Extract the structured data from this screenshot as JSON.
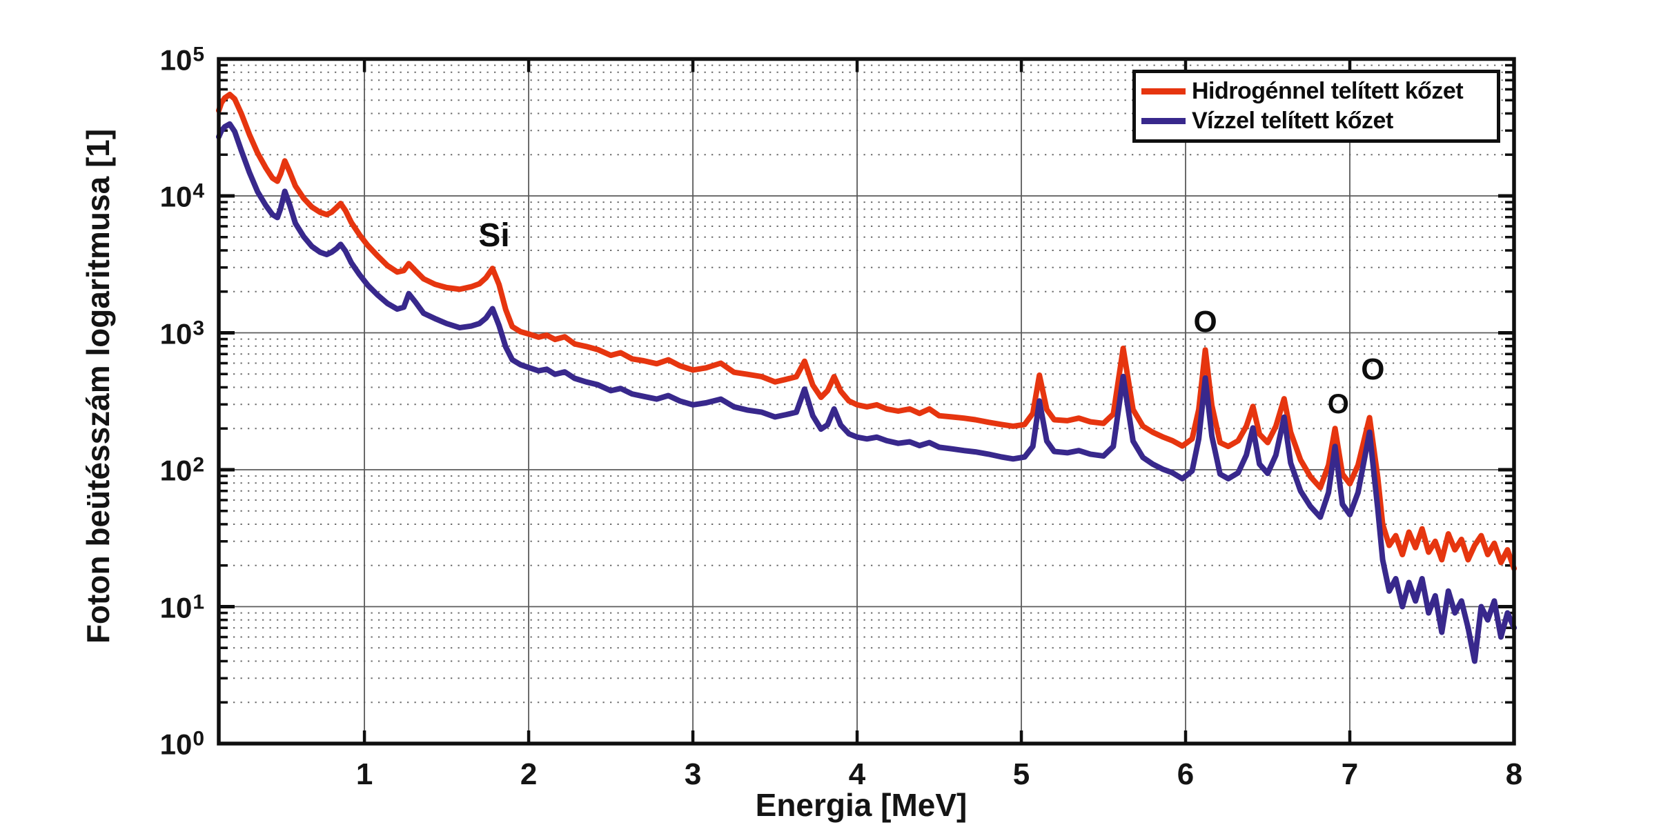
{
  "figure": {
    "background": "#ffffff",
    "axis_color": "#0f0f0f",
    "grid_major_color": "#5a5a5a",
    "grid_minor_color": "#474747"
  },
  "chart_data": {
    "type": "line",
    "title": "",
    "xlabel": "Energia [MeV]",
    "ylabel": "Foton beütésszám logaritmusa [1]",
    "xlim": [
      0.113,
      8
    ],
    "x_ticks": [
      1,
      2,
      3,
      4,
      5,
      6,
      7,
      8
    ],
    "y_scale": "log",
    "y_tick_exponents": [
      0,
      1,
      2,
      3,
      4,
      5
    ],
    "grid": {
      "major": true,
      "minor_dotted": true
    },
    "legend_position": "top-right",
    "annotations": [
      {
        "text": "Si",
        "x": 1.79,
        "y": 5100
      },
      {
        "text": "O",
        "x": 6.12,
        "y": 1200
      },
      {
        "text": "O",
        "x": 6.93,
        "y": 300
      },
      {
        "text": "O",
        "x": 7.14,
        "y": 540
      }
    ],
    "series": [
      {
        "name": "Hidrogénnel telített kőzet",
        "color": "#e6350f",
        "points": [
          [
            0.113,
            42000
          ],
          [
            0.13,
            48000
          ],
          [
            0.15,
            52000
          ],
          [
            0.18,
            55000
          ],
          [
            0.21,
            51000
          ],
          [
            0.25,
            40000
          ],
          [
            0.3,
            28000
          ],
          [
            0.35,
            20500
          ],
          [
            0.4,
            16000
          ],
          [
            0.44,
            13500
          ],
          [
            0.47,
            12800
          ],
          [
            0.49,
            14500
          ],
          [
            0.515,
            18000
          ],
          [
            0.545,
            15000
          ],
          [
            0.58,
            11800
          ],
          [
            0.63,
            9600
          ],
          [
            0.68,
            8300
          ],
          [
            0.73,
            7600
          ],
          [
            0.77,
            7300
          ],
          [
            0.8,
            7600
          ],
          [
            0.83,
            8200
          ],
          [
            0.855,
            8800
          ],
          [
            0.885,
            7800
          ],
          [
            0.92,
            6400
          ],
          [
            0.97,
            5200
          ],
          [
            1.02,
            4350
          ],
          [
            1.08,
            3650
          ],
          [
            1.14,
            3100
          ],
          [
            1.2,
            2780
          ],
          [
            1.24,
            2850
          ],
          [
            1.27,
            3200
          ],
          [
            1.31,
            2850
          ],
          [
            1.36,
            2480
          ],
          [
            1.43,
            2260
          ],
          [
            1.5,
            2140
          ],
          [
            1.58,
            2080
          ],
          [
            1.65,
            2170
          ],
          [
            1.7,
            2280
          ],
          [
            1.74,
            2520
          ],
          [
            1.78,
            2950
          ],
          [
            1.82,
            2250
          ],
          [
            1.86,
            1480
          ],
          [
            1.9,
            1110
          ],
          [
            1.95,
            1020
          ],
          [
            2.0,
            980
          ],
          [
            2.06,
            930
          ],
          [
            2.11,
            960
          ],
          [
            2.16,
            895
          ],
          [
            2.22,
            935
          ],
          [
            2.28,
            830
          ],
          [
            2.35,
            795
          ],
          [
            2.42,
            755
          ],
          [
            2.5,
            685
          ],
          [
            2.56,
            715
          ],
          [
            2.63,
            645
          ],
          [
            2.7,
            625
          ],
          [
            2.78,
            595
          ],
          [
            2.85,
            635
          ],
          [
            2.92,
            575
          ],
          [
            3.0,
            535
          ],
          [
            3.08,
            555
          ],
          [
            3.17,
            600
          ],
          [
            3.25,
            515
          ],
          [
            3.33,
            498
          ],
          [
            3.42,
            478
          ],
          [
            3.5,
            438
          ],
          [
            3.57,
            458
          ],
          [
            3.63,
            478
          ],
          [
            3.68,
            620
          ],
          [
            3.73,
            415
          ],
          [
            3.78,
            338
          ],
          [
            3.82,
            378
          ],
          [
            3.86,
            478
          ],
          [
            3.9,
            375
          ],
          [
            3.95,
            318
          ],
          [
            4.0,
            298
          ],
          [
            4.06,
            288
          ],
          [
            4.12,
            298
          ],
          [
            4.18,
            278
          ],
          [
            4.25,
            268
          ],
          [
            4.32,
            278
          ],
          [
            4.38,
            258
          ],
          [
            4.44,
            278
          ],
          [
            4.5,
            248
          ],
          [
            4.58,
            243
          ],
          [
            4.65,
            238
          ],
          [
            4.72,
            232
          ],
          [
            4.8,
            222
          ],
          [
            4.88,
            214
          ],
          [
            4.95,
            208
          ],
          [
            5.02,
            214
          ],
          [
            5.07,
            258
          ],
          [
            5.11,
            490
          ],
          [
            5.155,
            275
          ],
          [
            5.2,
            232
          ],
          [
            5.28,
            228
          ],
          [
            5.35,
            238
          ],
          [
            5.42,
            224
          ],
          [
            5.5,
            218
          ],
          [
            5.56,
            255
          ],
          [
            5.62,
            770
          ],
          [
            5.68,
            275
          ],
          [
            5.74,
            208
          ],
          [
            5.8,
            188
          ],
          [
            5.86,
            174
          ],
          [
            5.92,
            163
          ],
          [
            5.98,
            149
          ],
          [
            6.04,
            168
          ],
          [
            6.08,
            275
          ],
          [
            6.12,
            750
          ],
          [
            6.16,
            295
          ],
          [
            6.21,
            158
          ],
          [
            6.26,
            148
          ],
          [
            6.32,
            163
          ],
          [
            6.37,
            208
          ],
          [
            6.41,
            290
          ],
          [
            6.45,
            182
          ],
          [
            6.5,
            158
          ],
          [
            6.55,
            208
          ],
          [
            6.6,
            330
          ],
          [
            6.64,
            188
          ],
          [
            6.7,
            118
          ],
          [
            6.76,
            89
          ],
          [
            6.82,
            74
          ],
          [
            6.87,
            108
          ],
          [
            6.91,
            200
          ],
          [
            6.955,
            93
          ],
          [
            7.0,
            79
          ],
          [
            7.05,
            108
          ],
          [
            7.12,
            240
          ],
          [
            7.17,
            88
          ],
          [
            7.2,
            40
          ],
          [
            7.24,
            28
          ],
          [
            7.28,
            33
          ],
          [
            7.32,
            24
          ],
          [
            7.36,
            35
          ],
          [
            7.4,
            27
          ],
          [
            7.44,
            37
          ],
          [
            7.48,
            25
          ],
          [
            7.52,
            30
          ],
          [
            7.56,
            22
          ],
          [
            7.6,
            34
          ],
          [
            7.64,
            26
          ],
          [
            7.68,
            31
          ],
          [
            7.72,
            22
          ],
          [
            7.76,
            28
          ],
          [
            7.8,
            33
          ],
          [
            7.84,
            24
          ],
          [
            7.88,
            29
          ],
          [
            7.92,
            21
          ],
          [
            7.96,
            26
          ],
          [
            8.0,
            19
          ]
        ]
      },
      {
        "name": "Vízzel telített kőzet",
        "color": "#38288c",
        "points": [
          [
            0.113,
            27000
          ],
          [
            0.13,
            30000
          ],
          [
            0.15,
            32000
          ],
          [
            0.18,
            33500
          ],
          [
            0.21,
            29500
          ],
          [
            0.25,
            21500
          ],
          [
            0.3,
            14800
          ],
          [
            0.35,
            10700
          ],
          [
            0.4,
            8500
          ],
          [
            0.44,
            7300
          ],
          [
            0.47,
            6950
          ],
          [
            0.49,
            8100
          ],
          [
            0.515,
            10800
          ],
          [
            0.545,
            8600
          ],
          [
            0.58,
            6300
          ],
          [
            0.63,
            5050
          ],
          [
            0.68,
            4280
          ],
          [
            0.73,
            3880
          ],
          [
            0.77,
            3730
          ],
          [
            0.8,
            3880
          ],
          [
            0.83,
            4120
          ],
          [
            0.855,
            4430
          ],
          [
            0.885,
            3950
          ],
          [
            0.92,
            3250
          ],
          [
            0.97,
            2660
          ],
          [
            1.02,
            2230
          ],
          [
            1.08,
            1890
          ],
          [
            1.14,
            1640
          ],
          [
            1.2,
            1490
          ],
          [
            1.24,
            1540
          ],
          [
            1.27,
            1930
          ],
          [
            1.31,
            1680
          ],
          [
            1.36,
            1390
          ],
          [
            1.43,
            1270
          ],
          [
            1.5,
            1170
          ],
          [
            1.58,
            1090
          ],
          [
            1.65,
            1120
          ],
          [
            1.7,
            1170
          ],
          [
            1.74,
            1280
          ],
          [
            1.78,
            1500
          ],
          [
            1.82,
            1130
          ],
          [
            1.86,
            790
          ],
          [
            1.9,
            635
          ],
          [
            1.95,
            585
          ],
          [
            2.0,
            558
          ],
          [
            2.06,
            528
          ],
          [
            2.11,
            542
          ],
          [
            2.16,
            498
          ],
          [
            2.22,
            518
          ],
          [
            2.28,
            465
          ],
          [
            2.35,
            438
          ],
          [
            2.42,
            418
          ],
          [
            2.5,
            378
          ],
          [
            2.56,
            392
          ],
          [
            2.63,
            358
          ],
          [
            2.7,
            343
          ],
          [
            2.78,
            328
          ],
          [
            2.85,
            348
          ],
          [
            2.92,
            318
          ],
          [
            3.0,
            298
          ],
          [
            3.08,
            308
          ],
          [
            3.17,
            328
          ],
          [
            3.25,
            288
          ],
          [
            3.33,
            273
          ],
          [
            3.42,
            263
          ],
          [
            3.5,
            243
          ],
          [
            3.57,
            253
          ],
          [
            3.63,
            263
          ],
          [
            3.68,
            388
          ],
          [
            3.73,
            248
          ],
          [
            3.78,
            198
          ],
          [
            3.82,
            213
          ],
          [
            3.86,
            278
          ],
          [
            3.9,
            212
          ],
          [
            3.95,
            183
          ],
          [
            4.0,
            173
          ],
          [
            4.06,
            168
          ],
          [
            4.12,
            173
          ],
          [
            4.18,
            163
          ],
          [
            4.25,
            156
          ],
          [
            4.32,
            160
          ],
          [
            4.38,
            150
          ],
          [
            4.44,
            158
          ],
          [
            4.5,
            146
          ],
          [
            4.58,
            142
          ],
          [
            4.65,
            138
          ],
          [
            4.72,
            135
          ],
          [
            4.8,
            130
          ],
          [
            4.88,
            124
          ],
          [
            4.95,
            120
          ],
          [
            5.02,
            124
          ],
          [
            5.07,
            148
          ],
          [
            5.11,
            318
          ],
          [
            5.155,
            162
          ],
          [
            5.2,
            136
          ],
          [
            5.28,
            133
          ],
          [
            5.35,
            138
          ],
          [
            5.42,
            130
          ],
          [
            5.5,
            126
          ],
          [
            5.56,
            148
          ],
          [
            5.62,
            480
          ],
          [
            5.68,
            162
          ],
          [
            5.74,
            123
          ],
          [
            5.8,
            110
          ],
          [
            5.86,
            101
          ],
          [
            5.92,
            95
          ],
          [
            5.98,
            86
          ],
          [
            6.04,
            98
          ],
          [
            6.08,
            168
          ],
          [
            6.12,
            468
          ],
          [
            6.16,
            176
          ],
          [
            6.21,
            93
          ],
          [
            6.26,
            86
          ],
          [
            6.32,
            95
          ],
          [
            6.37,
            128
          ],
          [
            6.41,
            202
          ],
          [
            6.45,
            110
          ],
          [
            6.5,
            94
          ],
          [
            6.55,
            128
          ],
          [
            6.6,
            242
          ],
          [
            6.64,
            112
          ],
          [
            6.7,
            70
          ],
          [
            6.76,
            54
          ],
          [
            6.82,
            45
          ],
          [
            6.87,
            68
          ],
          [
            6.91,
            148
          ],
          [
            6.955,
            56
          ],
          [
            7.0,
            47
          ],
          [
            7.05,
            68
          ],
          [
            7.12,
            188
          ],
          [
            7.17,
            52
          ],
          [
            7.2,
            22
          ],
          [
            7.24,
            13
          ],
          [
            7.28,
            16
          ],
          [
            7.32,
            10
          ],
          [
            7.36,
            15
          ],
          [
            7.4,
            11
          ],
          [
            7.44,
            16
          ],
          [
            7.48,
            9
          ],
          [
            7.52,
            12
          ],
          [
            7.56,
            6.5
          ],
          [
            7.6,
            13
          ],
          [
            7.64,
            9
          ],
          [
            7.68,
            11
          ],
          [
            7.72,
            7
          ],
          [
            7.76,
            4
          ],
          [
            7.8,
            10
          ],
          [
            7.84,
            8
          ],
          [
            7.88,
            11
          ],
          [
            7.92,
            6
          ],
          [
            7.96,
            9
          ],
          [
            8.0,
            7
          ]
        ]
      }
    ]
  }
}
